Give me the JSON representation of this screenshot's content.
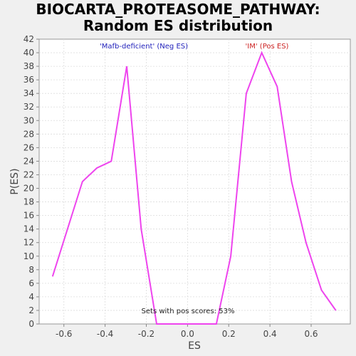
{
  "chart_data": {
    "type": "line",
    "title": "BIOCARTA_PROTEASOME_PATHWAY:",
    "subtitle": "Random ES distribution",
    "xlabel": "ES",
    "ylabel": "P(ES)",
    "xlim": [
      -0.72,
      0.79
    ],
    "ylim": [
      0,
      42
    ],
    "xticks": [
      -0.6,
      -0.4,
      -0.2,
      0.0,
      0.2,
      0.4,
      0.6
    ],
    "xtick_labels": [
      "-0.6",
      "-0.4",
      "-0.2",
      "0.0",
      "0.2",
      "0.4",
      "0.6"
    ],
    "yticks": [
      0,
      2,
      4,
      6,
      8,
      10,
      12,
      14,
      16,
      18,
      20,
      22,
      24,
      26,
      28,
      30,
      32,
      34,
      36,
      38,
      40,
      42
    ],
    "ytick_labels": [
      "0",
      "2",
      "4",
      "6",
      "8",
      "10",
      "12",
      "14",
      "16",
      "18",
      "20",
      "22",
      "24",
      "26",
      "28",
      "30",
      "32",
      "34",
      "36",
      "38",
      "40",
      "42"
    ],
    "grid": true,
    "series_color": "#ee44ee",
    "x": [
      -0.655,
      -0.51,
      -0.44,
      -0.37,
      -0.295,
      -0.225,
      -0.15,
      -0.08,
      0.0,
      0.07,
      0.14,
      0.21,
      0.285,
      0.36,
      0.435,
      0.505,
      0.575,
      0.65,
      0.72
    ],
    "y": [
      7,
      21,
      23,
      24,
      38,
      14,
      0,
      0,
      0,
      0,
      0,
      10,
      34,
      40,
      35,
      21,
      12,
      5,
      2
    ],
    "annotations": {
      "neg_label": "'Mafb-deficient' (Neg ES)",
      "neg_color": "#2222bb",
      "pos_label": "'IM' (Pos ES)",
      "pos_color": "#cc2222",
      "footer": "Sets with pos scores: 53%"
    }
  }
}
